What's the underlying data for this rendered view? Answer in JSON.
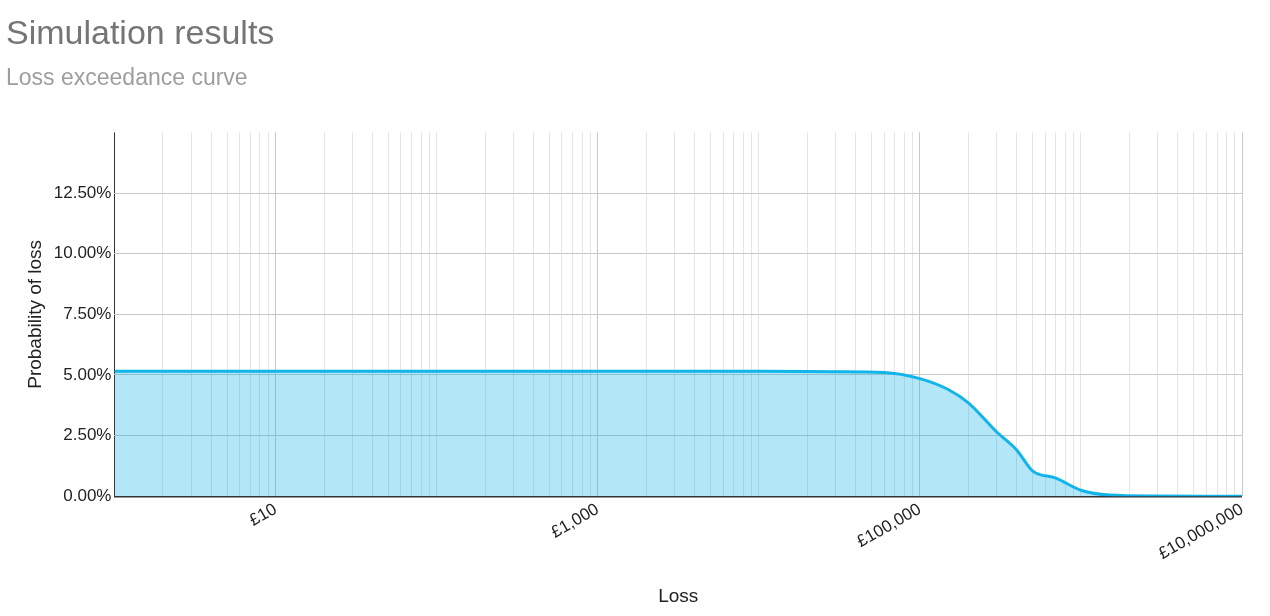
{
  "chart_data": {
    "type": "area",
    "title": "Simulation results",
    "subtitle": "Loss exceedance curve",
    "xlabel": "Loss",
    "ylabel": "Probability of loss",
    "log": "x",
    "grid": true,
    "legend": false,
    "xlim": [
      1,
      10000000
    ],
    "ylim": [
      0,
      15
    ],
    "xticks": [
      {
        "value": 1,
        "label": null
      },
      {
        "value": 2,
        "label": null
      },
      {
        "value": 3,
        "label": null
      },
      {
        "value": 4,
        "label": null
      },
      {
        "value": 5,
        "label": null
      },
      {
        "value": 6,
        "label": null
      },
      {
        "value": 7,
        "label": null
      },
      {
        "value": 8,
        "label": null
      },
      {
        "value": 9,
        "label": null
      },
      {
        "value": 10,
        "label": "£10"
      },
      {
        "value": 20,
        "label": null
      },
      {
        "value": 30,
        "label": null
      },
      {
        "value": 40,
        "label": null
      },
      {
        "value": 50,
        "label": null
      },
      {
        "value": 60,
        "label": null
      },
      {
        "value": 70,
        "label": null
      },
      {
        "value": 80,
        "label": null
      },
      {
        "value": 90,
        "label": null
      },
      {
        "value": 100,
        "label": null
      },
      {
        "value": 200,
        "label": null
      },
      {
        "value": 300,
        "label": null
      },
      {
        "value": 400,
        "label": null
      },
      {
        "value": 500,
        "label": null
      },
      {
        "value": 600,
        "label": null
      },
      {
        "value": 700,
        "label": null
      },
      {
        "value": 800,
        "label": null
      },
      {
        "value": 900,
        "label": null
      },
      {
        "value": 1000,
        "label": "£1,000"
      },
      {
        "value": 2000,
        "label": null
      },
      {
        "value": 3000,
        "label": null
      },
      {
        "value": 4000,
        "label": null
      },
      {
        "value": 5000,
        "label": null
      },
      {
        "value": 6000,
        "label": null
      },
      {
        "value": 7000,
        "label": null
      },
      {
        "value": 8000,
        "label": null
      },
      {
        "value": 9000,
        "label": null
      },
      {
        "value": 10000,
        "label": null
      },
      {
        "value": 20000,
        "label": null
      },
      {
        "value": 30000,
        "label": null
      },
      {
        "value": 40000,
        "label": null
      },
      {
        "value": 50000,
        "label": null
      },
      {
        "value": 60000,
        "label": null
      },
      {
        "value": 70000,
        "label": null
      },
      {
        "value": 80000,
        "label": null
      },
      {
        "value": 90000,
        "label": null
      },
      {
        "value": 100000,
        "label": "£100,000"
      },
      {
        "value": 200000,
        "label": null
      },
      {
        "value": 300000,
        "label": null
      },
      {
        "value": 400000,
        "label": null
      },
      {
        "value": 500000,
        "label": null
      },
      {
        "value": 600000,
        "label": null
      },
      {
        "value": 700000,
        "label": null
      },
      {
        "value": 800000,
        "label": null
      },
      {
        "value": 900000,
        "label": null
      },
      {
        "value": 1000000,
        "label": null
      },
      {
        "value": 2000000,
        "label": null
      },
      {
        "value": 3000000,
        "label": null
      },
      {
        "value": 4000000,
        "label": null
      },
      {
        "value": 5000000,
        "label": null
      },
      {
        "value": 6000000,
        "label": null
      },
      {
        "value": 7000000,
        "label": null
      },
      {
        "value": 8000000,
        "label": null
      },
      {
        "value": 9000000,
        "label": null
      },
      {
        "value": 10000000,
        "label": "£10,000,000"
      }
    ],
    "yticks": [
      {
        "value": 0,
        "label": "0.00%"
      },
      {
        "value": 2.5,
        "label": "2.50%"
      },
      {
        "value": 5,
        "label": "5.00%"
      },
      {
        "value": 7.5,
        "label": "7.50%"
      },
      {
        "value": 10,
        "label": "10.00%"
      },
      {
        "value": 12.5,
        "label": "12.50%"
      }
    ],
    "series": [
      {
        "color": "#12b5ea",
        "x": [
          1,
          10000,
          30000,
          60000,
          100000,
          150000,
          200000,
          300000,
          400000,
          500000,
          700000,
          1000000,
          1500000,
          3000000,
          10000000
        ],
        "values": [
          5.15,
          5.15,
          5.13,
          5.1,
          4.85,
          4.4,
          3.85,
          2.65,
          1.9,
          1.05,
          0.75,
          0.25,
          0.05,
          0.01,
          0
        ]
      }
    ]
  }
}
